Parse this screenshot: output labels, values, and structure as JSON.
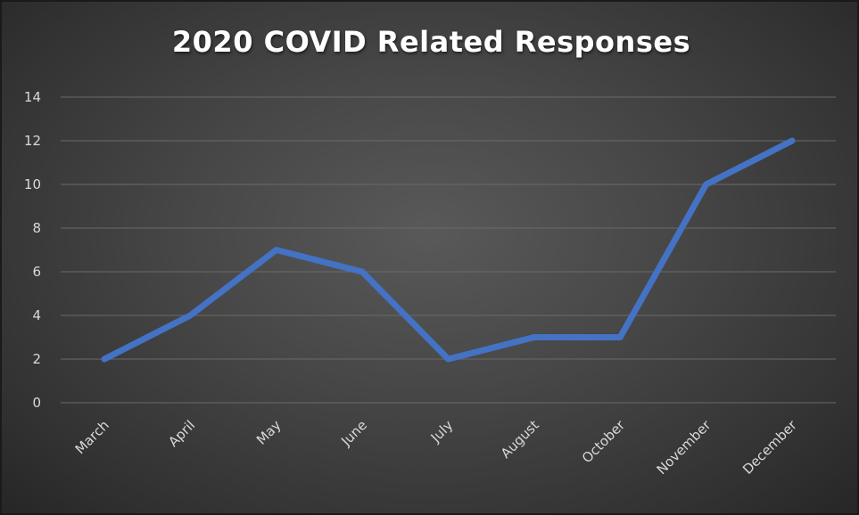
{
  "chart_data": {
    "type": "line",
    "title": "2020 COVID Related Responses",
    "xlabel": "",
    "ylabel": "",
    "categories": [
      "March",
      "April",
      "May",
      "June",
      "July",
      "August",
      "October",
      "November",
      "December"
    ],
    "series": [
      {
        "values": [
          2,
          4,
          7,
          6,
          2,
          3,
          3,
          10,
          12
        ],
        "color": "#4472C4"
      }
    ],
    "ylim": [
      0,
      14
    ],
    "yticks": [
      0,
      2,
      4,
      6,
      8,
      10,
      12,
      14
    ],
    "grid": true,
    "legend": "none",
    "background": "#474747",
    "gridline_color": "#6a6a6a",
    "text_color": "#d9d9d9"
  }
}
